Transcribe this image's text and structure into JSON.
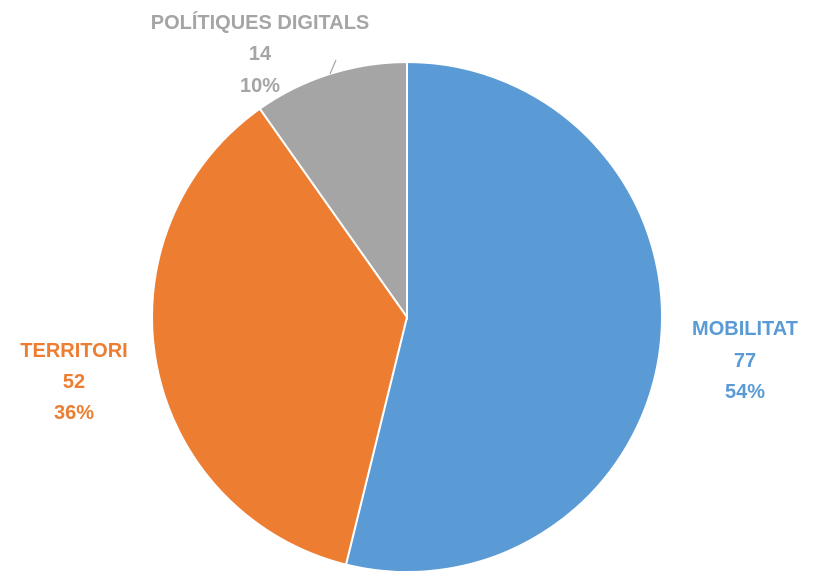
{
  "chart_data": {
    "type": "pie",
    "slices": [
      {
        "label": "MOBILITAT",
        "value": 77,
        "percent": "54%",
        "color": "#5B9BD5"
      },
      {
        "label": "TERRITORI",
        "value": 52,
        "percent": "36%",
        "color": "#ED7D31"
      },
      {
        "label": "POLÍTIQUES DIGITALS",
        "value": 14,
        "percent": "10%",
        "color": "#A5A5A5"
      }
    ],
    "legend": "none",
    "labels": "outside"
  }
}
